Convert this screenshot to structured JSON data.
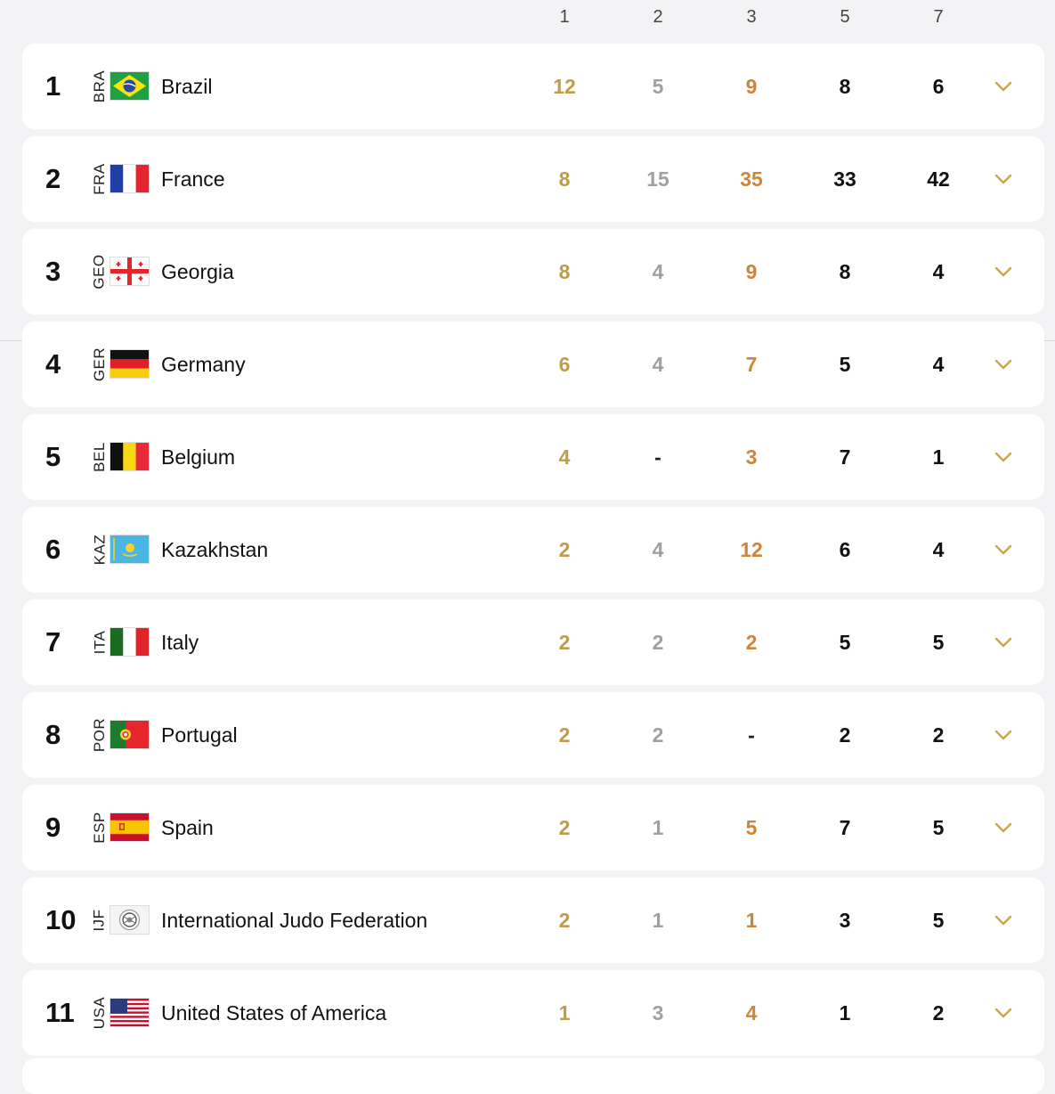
{
  "header": {
    "columns": [
      "1",
      "2",
      "3",
      "5",
      "7"
    ]
  },
  "colors": {
    "gold": "#bf9d47",
    "silver": "#a0a0a4",
    "bronze": "#cf8538",
    "text": "#111111",
    "chevron": "#c9a54c"
  },
  "rows": [
    {
      "rank": "1",
      "code": "BRA",
      "country": "Brazil",
      "flag": "brazil-flag-icon",
      "v1": "12",
      "v2": "5",
      "v3": "9",
      "v5": "8",
      "v7": "6"
    },
    {
      "rank": "2",
      "code": "FRA",
      "country": "France",
      "flag": "france-flag-icon",
      "v1": "8",
      "v2": "15",
      "v3": "35",
      "v5": "33",
      "v7": "42"
    },
    {
      "rank": "3",
      "code": "GEO",
      "country": "Georgia",
      "flag": "georgia-flag-icon",
      "v1": "8",
      "v2": "4",
      "v3": "9",
      "v5": "8",
      "v7": "4"
    },
    {
      "rank": "4",
      "code": "GER",
      "country": "Germany",
      "flag": "germany-flag-icon",
      "v1": "6",
      "v2": "4",
      "v3": "7",
      "v5": "5",
      "v7": "4"
    },
    {
      "rank": "5",
      "code": "BEL",
      "country": "Belgium",
      "flag": "belgium-flag-icon",
      "v1": "4",
      "v2": "-",
      "v3": "3",
      "v5": "7",
      "v7": "1"
    },
    {
      "rank": "6",
      "code": "KAZ",
      "country": "Kazakhstan",
      "flag": "kazakhstan-flag-icon",
      "v1": "2",
      "v2": "4",
      "v3": "12",
      "v5": "6",
      "v7": "4"
    },
    {
      "rank": "7",
      "code": "ITA",
      "country": "Italy",
      "flag": "italy-flag-icon",
      "v1": "2",
      "v2": "2",
      "v3": "2",
      "v5": "5",
      "v7": "5"
    },
    {
      "rank": "8",
      "code": "POR",
      "country": "Portugal",
      "flag": "portugal-flag-icon",
      "v1": "2",
      "v2": "2",
      "v3": "-",
      "v5": "2",
      "v7": "2"
    },
    {
      "rank": "9",
      "code": "ESP",
      "country": "Spain",
      "flag": "spain-flag-icon",
      "v1": "2",
      "v2": "1",
      "v3": "5",
      "v5": "7",
      "v7": "5"
    },
    {
      "rank": "10",
      "code": "IJF",
      "country": "International Judo Federation",
      "flag": "ijf-flag-icon",
      "v1": "2",
      "v2": "1",
      "v3": "1",
      "v5": "3",
      "v7": "5"
    },
    {
      "rank": "11",
      "code": "USA",
      "country": "United States of America",
      "flag": "usa-flag-icon",
      "v1": "1",
      "v2": "3",
      "v3": "4",
      "v5": "1",
      "v7": "2"
    }
  ]
}
